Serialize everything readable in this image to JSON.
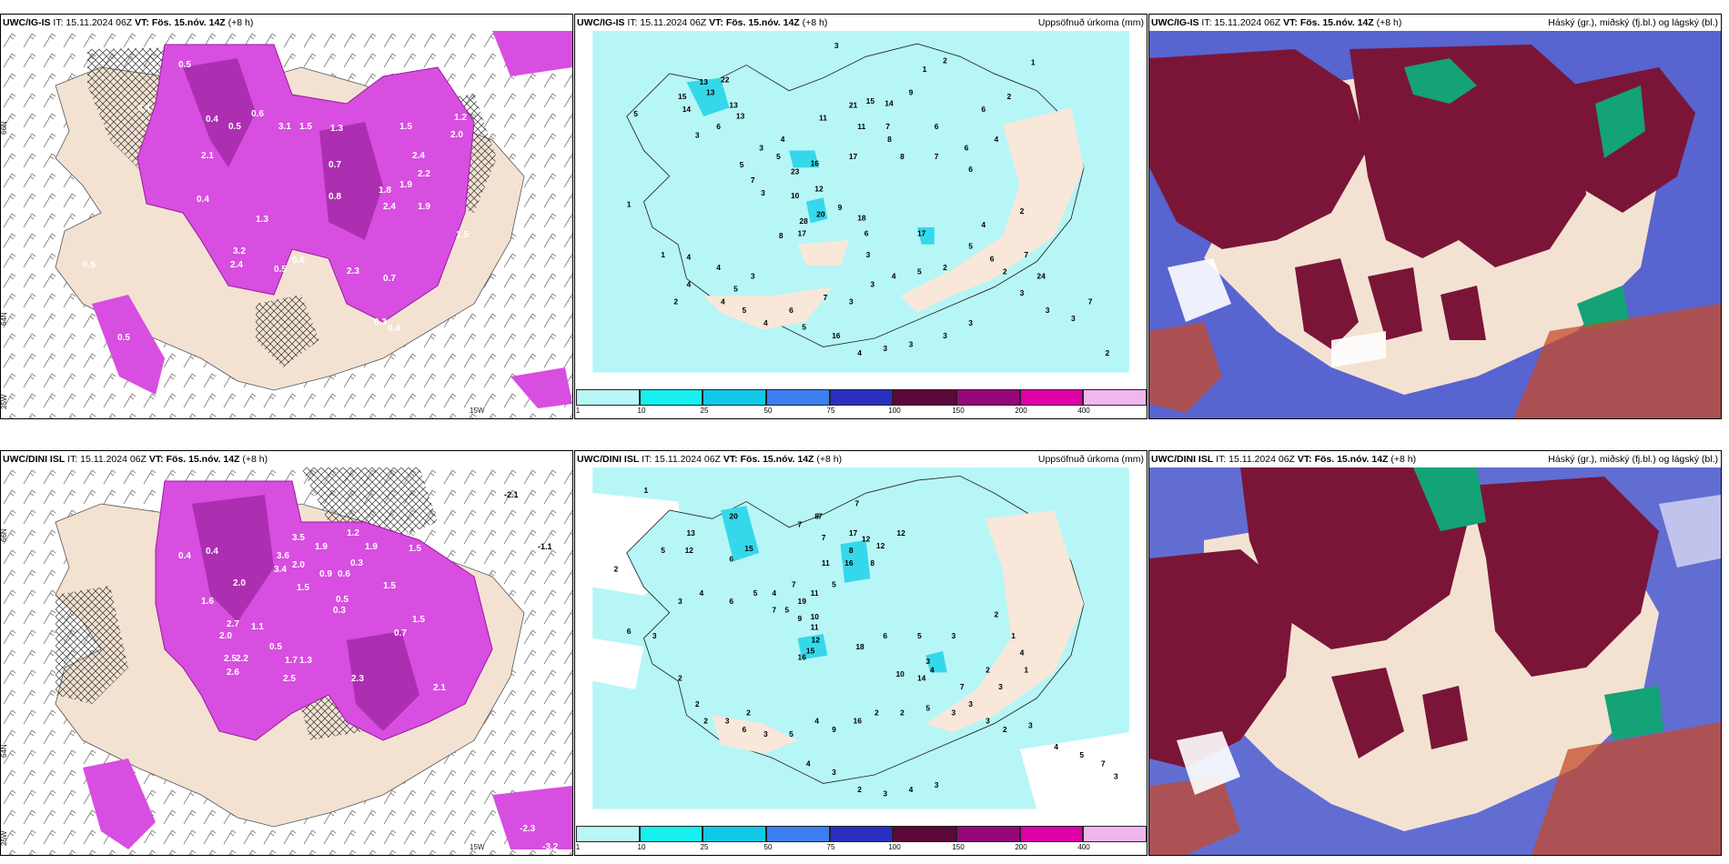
{
  "panels": [
    {
      "model": "UWC/IG-IS",
      "it": "IT: 15.11.2024 06Z",
      "vt_label": "VT:",
      "vt_value": "Fös. 15.nóv. 14Z",
      "lead": "(+8 h)",
      "right_title": ""
    },
    {
      "model": "UWC/IG-IS",
      "it": "IT: 15.11.2024 06Z",
      "vt_label": "VT:",
      "vt_value": "Fös. 15.nóv. 14Z",
      "lead": "(+8 h)",
      "right_title": "Uppsöfnuð úrkoma (mm)"
    },
    {
      "model": "UWC/IG-IS",
      "it": "IT: 15.11.2024 06Z",
      "vt_label": "VT:",
      "vt_value": "Fös. 15.nóv. 14Z",
      "lead": "(+8 h)",
      "right_title": "Háský (gr.), miðský (fj.bl.) og lágský (bl.)"
    },
    {
      "model": "UWC/DINI ISL",
      "it": "IT: 15.11.2024 06Z",
      "vt_label": "VT:",
      "vt_value": "Fös. 15.nóv. 14Z",
      "lead": "(+8 h)",
      "right_title": ""
    },
    {
      "model": "UWC/DINI ISL",
      "it": "IT: 15.11.2024 06Z",
      "vt_label": "VT:",
      "vt_value": "Fös. 15.nóv. 14Z",
      "lead": "(+8 h)",
      "right_title": "Uppsöfnuð úrkoma (mm)"
    },
    {
      "model": "UWC/DINI ISL",
      "it": "IT: 15.11.2024 06Z",
      "vt_label": "VT:",
      "vt_value": "Fös. 15.nóv. 14Z",
      "lead": "(+8 h)",
      "right_title": "Háský (gr.), miðský (fj.bl.) og lágský (bl.)"
    }
  ],
  "colorbar": {
    "labels": [
      "1",
      "10",
      "25",
      "50",
      "75",
      "100",
      "150",
      "200",
      "400"
    ],
    "colors": [
      "#b9f6f6",
      "#16f0ef",
      "#12c8e8",
      "#3c7df0",
      "#2a2fc0",
      "#5c0838",
      "#96087a",
      "#e000a8",
      "#f0b6ee"
    ]
  },
  "axes": {
    "lat_labels": [
      "66N",
      "64N",
      "25W"
    ],
    "lon_label": "15W",
    "lat_right": [
      "66N",
      "64N"
    ]
  },
  "colors": {
    "land": "#f3e2d2",
    "sea_precip": "#b7f6f6",
    "precip_mid": "#35d8ea",
    "magenta": "#d84ee0",
    "magenta_dark": "#a52aa8",
    "cloud_high": "#7a1538",
    "cloud_mid": "#3b49c7",
    "cloud_low": "#14a277",
    "cloud_light": "#c64a2a"
  },
  "precip_left_top": [
    "0.5",
    "0.4",
    "0.4",
    "0.5",
    "0.6",
    "3.1",
    "1.5",
    "1.3",
    "1.2",
    "2.0",
    "1.5",
    "0.7",
    "2.4",
    "2.2",
    "1.9",
    "1.9",
    "1.8",
    "2.4",
    "0.8",
    "1.5",
    "2.3",
    "3.2",
    "2.4",
    "0.5",
    "0.4",
    "0.5",
    "0.3",
    "0.4",
    "0.7",
    "1.3",
    "2.1",
    "0.4",
    "0.5",
    "0.6"
  ],
  "precip_left_bot": [
    "0.4",
    "3.5",
    "2.0",
    "1.9",
    "1.2",
    "1.9",
    "1.3",
    "1.5",
    "2.0",
    "1.5",
    "3.6",
    "3.4",
    "0.6",
    "0.3",
    "0.9",
    "2.7",
    "2.0",
    "1.6",
    "2.5",
    "2.2",
    "2.6",
    "1.1",
    "1.7",
    "2.5",
    "1.3",
    "0.7",
    "1.5",
    "2.3",
    "2.1",
    "0.5",
    "0.5",
    "1.5",
    "-2.1",
    "-1.1",
    "0.5",
    "0.4",
    "-2.3",
    "-3.2",
    "0.4",
    "0.3"
  ],
  "acc_top": [
    "3",
    "2",
    "1",
    "5",
    "13",
    "22",
    "13",
    "15",
    "14",
    "13",
    "13",
    "6",
    "3",
    "21",
    "11",
    "15",
    "14",
    "11",
    "9",
    "7",
    "8",
    "1",
    "6",
    "6",
    "2",
    "6",
    "7",
    "4",
    "6",
    "8",
    "17",
    "16",
    "23",
    "5",
    "4",
    "3",
    "5",
    "7",
    "12",
    "10",
    "3",
    "20",
    "18",
    "28",
    "17",
    "8",
    "9",
    "17",
    "6",
    "3",
    "2",
    "1",
    "4",
    "4",
    "1",
    "4",
    "5",
    "2",
    "3",
    "4",
    "5",
    "4",
    "6",
    "7",
    "3",
    "3",
    "4",
    "5",
    "2",
    "5",
    "4",
    "6",
    "2",
    "7",
    "3",
    "2",
    "5",
    "16",
    "4",
    "3",
    "3",
    "3",
    "3",
    "3",
    "24",
    "3",
    "7",
    "4"
  ],
  "acc_bot": [
    "1",
    "7",
    "8",
    "13",
    "20",
    "15",
    "12",
    "5",
    "6",
    "2",
    "7",
    "7",
    "7",
    "17",
    "16",
    "12",
    "12",
    "8",
    "8",
    "11",
    "12",
    "5",
    "7",
    "4",
    "5",
    "19",
    "11",
    "6",
    "4",
    "3",
    "7",
    "5",
    "9",
    "10",
    "11",
    "12",
    "15",
    "16",
    "18",
    "6",
    "5",
    "3",
    "2",
    "1",
    "3",
    "4",
    "14",
    "10",
    "7",
    "3",
    "2",
    "4",
    "1",
    "6",
    "3",
    "2",
    "2",
    "2",
    "3",
    "2",
    "6",
    "3",
    "5",
    "4",
    "9",
    "16",
    "2",
    "2",
    "5",
    "3",
    "3",
    "3",
    "2",
    "3",
    "4",
    "5",
    "7",
    "3",
    "4",
    "3",
    "2",
    "3",
    "4",
    "3"
  ]
}
